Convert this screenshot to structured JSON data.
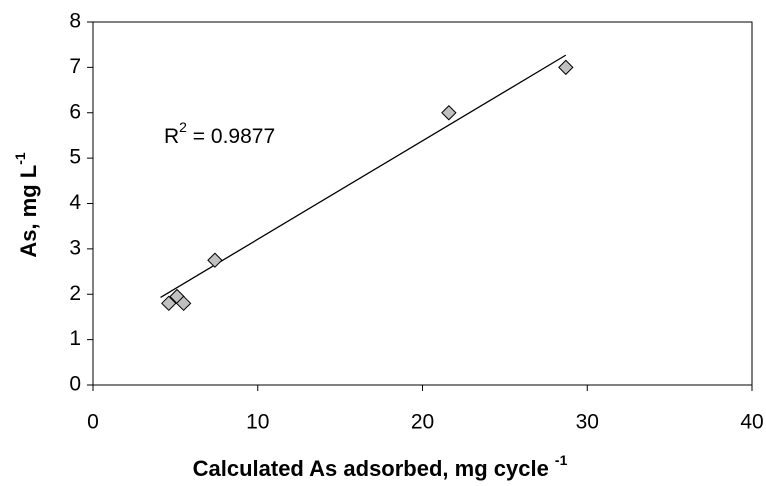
{
  "chart_data": {
    "type": "scatter",
    "x_label": {
      "text": "Calculated As adsorbed, mg cycle ",
      "sup": "-1"
    },
    "y_label": {
      "text": "As, mg L",
      "sup": "-1"
    },
    "annotation": {
      "text": "R",
      "sup": "2",
      "rest": " = 0.9877"
    },
    "x": [
      4.6,
      5.1,
      5.5,
      7.4,
      21.6,
      28.7
    ],
    "series": [
      {
        "color": "#c0c0c0",
        "values": [
          1.8,
          1.95,
          1.8,
          2.75,
          6.0,
          7.0
        ]
      }
    ],
    "trendline": {
      "color": "#000000",
      "x": [
        4.1,
        28.7
      ],
      "y": [
        1.93,
        7.27
      ]
    },
    "xlim": [
      0,
      40
    ],
    "xticks": [
      0,
      10,
      20,
      30,
      40
    ],
    "ylim": [
      0,
      8
    ],
    "yticks": [
      0,
      1,
      2,
      3,
      4,
      5,
      6,
      7,
      8
    ],
    "grid": false
  }
}
